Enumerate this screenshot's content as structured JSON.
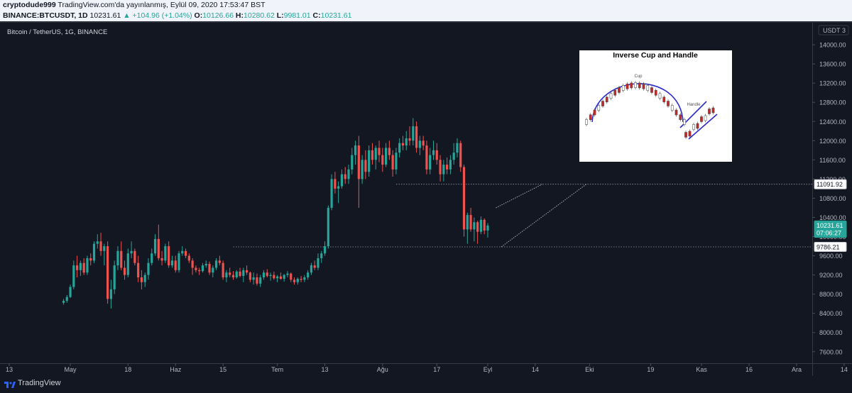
{
  "header": {
    "publisher": "cryptodude999",
    "published_text": " TradingView.com'da yayınlanmış, Eylül 09, 2020 17:53:47 BST",
    "symbol": "BINANCE:BTCUSDT, 1D",
    "last_price": "10231.61",
    "change": "▲ +104.96 (+1.04%)",
    "open_label": "O:",
    "open": "10126.66",
    "high_label": "H:",
    "high": "10280.62",
    "low_label": "L:",
    "low": "9981.01",
    "close_label": "C:",
    "close": "10231.61"
  },
  "chart_title": "Bitcoin / TetherUS, 1G, BINANCE",
  "footer": {
    "brand": "TradingView"
  },
  "colors": {
    "up": "#26a69a",
    "down": "#ef5350",
    "background": "#131722",
    "axis_text": "#b2b5be"
  },
  "chart_data": {
    "type": "candlestick",
    "currency_label": "USDT",
    "currency_marker": "3",
    "y_ticks": [
      7600,
      8000,
      8400,
      8800,
      9200,
      9600,
      10000,
      10400,
      10800,
      11200,
      11600,
      12000,
      12400,
      12800,
      13200,
      13600,
      14000
    ],
    "y_tick_labels": [
      "7600.00",
      "8000.00",
      "8400.00",
      "8800.00",
      "9200.00",
      "9600.00",
      "10000.00",
      "10400.00",
      "10800.00",
      "11200.00",
      "11600.00",
      "12000.00",
      "12400.00",
      "12800.00",
      "13200.00",
      "13600.00",
      "14000.00"
    ],
    "ylim": [
      7360,
      14460
    ],
    "x_labels": [
      {
        "day": 0,
        "label": "13"
      },
      {
        "day": 18,
        "label": "May"
      },
      {
        "day": 35,
        "label": "18"
      },
      {
        "day": 49,
        "label": "Haz"
      },
      {
        "day": 63,
        "label": "15"
      },
      {
        "day": 79,
        "label": "Tem"
      },
      {
        "day": 93,
        "label": "13"
      },
      {
        "day": 110,
        "label": "Ağu"
      },
      {
        "day": 126,
        "label": "17"
      },
      {
        "day": 141,
        "label": "Eyl"
      },
      {
        "day": 155,
        "label": "14"
      },
      {
        "day": 171,
        "label": "Eki"
      },
      {
        "day": 189,
        "label": "19"
      },
      {
        "day": 204,
        "label": "Kas"
      },
      {
        "day": 218,
        "label": "16"
      },
      {
        "day": 232,
        "label": "Ara"
      },
      {
        "day": 246,
        "label": "14"
      }
    ],
    "price_labels": [
      {
        "value": 11091.92,
        "text": "11091.92",
        "style": "white"
      },
      {
        "value": 10231.61,
        "text": "10231.61",
        "style": "green"
      },
      {
        "value": 10080,
        "text": "07:06:27",
        "style": "green"
      },
      {
        "value": 9786.21,
        "text": "9786.21",
        "style": "white"
      }
    ],
    "levels": [
      {
        "value": 11091.92,
        "from_day": 114
      },
      {
        "value": 9786.21,
        "from_day": 66
      }
    ],
    "trendlines": [
      {
        "x1": 143.4,
        "y1": 10600,
        "x2": 157,
        "y2": 11090
      },
      {
        "x1": 145,
        "y1": 9786,
        "x2": 170,
        "y2": 11090
      }
    ],
    "candles": [
      {
        "o": 8620,
        "h": 8700,
        "l": 8580,
        "c": 8660
      },
      {
        "o": 8660,
        "h": 8780,
        "l": 8620,
        "c": 8740
      },
      {
        "o": 8740,
        "h": 9000,
        "l": 8720,
        "c": 8950
      },
      {
        "o": 8950,
        "h": 9500,
        "l": 8900,
        "c": 9400
      },
      {
        "o": 9400,
        "h": 9600,
        "l": 9150,
        "c": 9300
      },
      {
        "o": 9300,
        "h": 9500,
        "l": 9180,
        "c": 9450
      },
      {
        "o": 9450,
        "h": 9550,
        "l": 9200,
        "c": 9250
      },
      {
        "o": 9250,
        "h": 9600,
        "l": 9200,
        "c": 9550
      },
      {
        "o": 9550,
        "h": 9650,
        "l": 9400,
        "c": 9500
      },
      {
        "o": 9500,
        "h": 9900,
        "l": 9450,
        "c": 9850
      },
      {
        "o": 9850,
        "h": 10050,
        "l": 9750,
        "c": 9900
      },
      {
        "o": 9900,
        "h": 10080,
        "l": 9600,
        "c": 9700
      },
      {
        "o": 9700,
        "h": 9850,
        "l": 9400,
        "c": 9800
      },
      {
        "o": 9800,
        "h": 9900,
        "l": 8600,
        "c": 8700
      },
      {
        "o": 8700,
        "h": 9100,
        "l": 8500,
        "c": 8900
      },
      {
        "o": 8900,
        "h": 9500,
        "l": 8800,
        "c": 9400
      },
      {
        "o": 9400,
        "h": 9800,
        "l": 9300,
        "c": 9700
      },
      {
        "o": 9700,
        "h": 9900,
        "l": 9300,
        "c": 9350
      },
      {
        "o": 9350,
        "h": 9500,
        "l": 9100,
        "c": 9200
      },
      {
        "o": 9200,
        "h": 9750,
        "l": 9150,
        "c": 9650
      },
      {
        "o": 9650,
        "h": 9900,
        "l": 9550,
        "c": 9700
      },
      {
        "o": 9700,
        "h": 9750,
        "l": 9400,
        "c": 9450
      },
      {
        "o": 9450,
        "h": 9600,
        "l": 9050,
        "c": 9150
      },
      {
        "o": 9150,
        "h": 9300,
        "l": 8900,
        "c": 9050
      },
      {
        "o": 9050,
        "h": 9250,
        "l": 8950,
        "c": 9200
      },
      {
        "o": 9200,
        "h": 9550,
        "l": 9100,
        "c": 9450
      },
      {
        "o": 9450,
        "h": 9750,
        "l": 9400,
        "c": 9650
      },
      {
        "o": 9650,
        "h": 10050,
        "l": 9600,
        "c": 9950
      },
      {
        "o": 9950,
        "h": 10250,
        "l": 9500,
        "c": 9550
      },
      {
        "o": 9550,
        "h": 9700,
        "l": 9400,
        "c": 9500
      },
      {
        "o": 9500,
        "h": 9850,
        "l": 9450,
        "c": 9800
      },
      {
        "o": 9800,
        "h": 9900,
        "l": 9350,
        "c": 9400
      },
      {
        "o": 9400,
        "h": 9600,
        "l": 9350,
        "c": 9500
      },
      {
        "o": 9500,
        "h": 9600,
        "l": 9250,
        "c": 9300
      },
      {
        "o": 9300,
        "h": 9700,
        "l": 9250,
        "c": 9650
      },
      {
        "o": 9650,
        "h": 9800,
        "l": 9600,
        "c": 9700
      },
      {
        "o": 9700,
        "h": 9750,
        "l": 9550,
        "c": 9600
      },
      {
        "o": 9600,
        "h": 9650,
        "l": 9450,
        "c": 9500
      },
      {
        "o": 9500,
        "h": 9550,
        "l": 9200,
        "c": 9350
      },
      {
        "o": 9350,
        "h": 9400,
        "l": 9250,
        "c": 9300
      },
      {
        "o": 9300,
        "h": 9350,
        "l": 9200,
        "c": 9280
      },
      {
        "o": 9280,
        "h": 9450,
        "l": 9250,
        "c": 9400
      },
      {
        "o": 9400,
        "h": 9500,
        "l": 9350,
        "c": 9430
      },
      {
        "o": 9430,
        "h": 9480,
        "l": 9200,
        "c": 9250
      },
      {
        "o": 9250,
        "h": 9400,
        "l": 9150,
        "c": 9350
      },
      {
        "o": 9350,
        "h": 9550,
        "l": 9300,
        "c": 9500
      },
      {
        "o": 9500,
        "h": 9600,
        "l": 9400,
        "c": 9450
      },
      {
        "o": 9450,
        "h": 9500,
        "l": 9100,
        "c": 9150
      },
      {
        "o": 9150,
        "h": 9300,
        "l": 9050,
        "c": 9250
      },
      {
        "o": 9250,
        "h": 9350,
        "l": 9150,
        "c": 9200
      },
      {
        "o": 9200,
        "h": 9280,
        "l": 9100,
        "c": 9150
      },
      {
        "o": 9150,
        "h": 9300,
        "l": 9120,
        "c": 9270
      },
      {
        "o": 9270,
        "h": 9350,
        "l": 9150,
        "c": 9180
      },
      {
        "o": 9180,
        "h": 9350,
        "l": 9050,
        "c": 9300
      },
      {
        "o": 9300,
        "h": 9400,
        "l": 9200,
        "c": 9250
      },
      {
        "o": 9250,
        "h": 9270,
        "l": 9050,
        "c": 9100
      },
      {
        "o": 9100,
        "h": 9250,
        "l": 9000,
        "c": 9150
      },
      {
        "o": 9150,
        "h": 9230,
        "l": 8980,
        "c": 9020
      },
      {
        "o": 9020,
        "h": 9200,
        "l": 8950,
        "c": 9150
      },
      {
        "o": 9150,
        "h": 9300,
        "l": 9100,
        "c": 9250
      },
      {
        "o": 9250,
        "h": 9320,
        "l": 9150,
        "c": 9180
      },
      {
        "o": 9180,
        "h": 9250,
        "l": 9080,
        "c": 9200
      },
      {
        "o": 9200,
        "h": 9270,
        "l": 9100,
        "c": 9130
      },
      {
        "o": 9130,
        "h": 9200,
        "l": 9050,
        "c": 9170
      },
      {
        "o": 9170,
        "h": 9250,
        "l": 9100,
        "c": 9120
      },
      {
        "o": 9120,
        "h": 9220,
        "l": 9060,
        "c": 9200
      },
      {
        "o": 9200,
        "h": 9280,
        "l": 9150,
        "c": 9230
      },
      {
        "o": 9230,
        "h": 9250,
        "l": 9050,
        "c": 9100
      },
      {
        "o": 9100,
        "h": 9150,
        "l": 9000,
        "c": 9050
      },
      {
        "o": 9050,
        "h": 9150,
        "l": 9000,
        "c": 9120
      },
      {
        "o": 9120,
        "h": 9180,
        "l": 9050,
        "c": 9100
      },
      {
        "o": 9100,
        "h": 9200,
        "l": 9050,
        "c": 9150
      },
      {
        "o": 9150,
        "h": 9300,
        "l": 9100,
        "c": 9250
      },
      {
        "o": 9250,
        "h": 9450,
        "l": 9200,
        "c": 9400
      },
      {
        "o": 9400,
        "h": 9500,
        "l": 9300,
        "c": 9350
      },
      {
        "o": 9350,
        "h": 9650,
        "l": 9300,
        "c": 9550
      },
      {
        "o": 9550,
        "h": 9700,
        "l": 9450,
        "c": 9650
      },
      {
        "o": 9650,
        "h": 9900,
        "l": 9600,
        "c": 9800
      },
      {
        "o": 9800,
        "h": 10650,
        "l": 9750,
        "c": 10600
      },
      {
        "o": 10600,
        "h": 11300,
        "l": 10550,
        "c": 11200
      },
      {
        "o": 11200,
        "h": 11350,
        "l": 10900,
        "c": 11000
      },
      {
        "o": 11000,
        "h": 11150,
        "l": 10700,
        "c": 11050
      },
      {
        "o": 11050,
        "h": 11400,
        "l": 11000,
        "c": 11300
      },
      {
        "o": 11300,
        "h": 11450,
        "l": 11100,
        "c": 11200
      },
      {
        "o": 11200,
        "h": 11500,
        "l": 11100,
        "c": 11400
      },
      {
        "o": 11400,
        "h": 11850,
        "l": 11300,
        "c": 11700
      },
      {
        "o": 11700,
        "h": 12000,
        "l": 11500,
        "c": 11900
      },
      {
        "o": 11900,
        "h": 12100,
        "l": 10600,
        "c": 11200
      },
      {
        "o": 11200,
        "h": 11700,
        "l": 11100,
        "c": 11600
      },
      {
        "o": 11600,
        "h": 11800,
        "l": 11200,
        "c": 11350
      },
      {
        "o": 11350,
        "h": 11900,
        "l": 11250,
        "c": 11800
      },
      {
        "o": 11800,
        "h": 11950,
        "l": 11500,
        "c": 11600
      },
      {
        "o": 11600,
        "h": 11900,
        "l": 11400,
        "c": 11850
      },
      {
        "o": 11850,
        "h": 12000,
        "l": 11550,
        "c": 11700
      },
      {
        "o": 11700,
        "h": 11850,
        "l": 11350,
        "c": 11500
      },
      {
        "o": 11500,
        "h": 11950,
        "l": 11450,
        "c": 11850
      },
      {
        "o": 11850,
        "h": 12000,
        "l": 11600,
        "c": 11700
      },
      {
        "o": 11700,
        "h": 11800,
        "l": 11250,
        "c": 11400
      },
      {
        "o": 11400,
        "h": 11850,
        "l": 11300,
        "c": 11750
      },
      {
        "o": 11750,
        "h": 12050,
        "l": 11650,
        "c": 11950
      },
      {
        "o": 11950,
        "h": 12100,
        "l": 11800,
        "c": 11900
      },
      {
        "o": 11900,
        "h": 12200,
        "l": 11800,
        "c": 12050
      },
      {
        "o": 12050,
        "h": 12300,
        "l": 11900,
        "c": 12000
      },
      {
        "o": 12000,
        "h": 12470,
        "l": 11900,
        "c": 12300
      },
      {
        "o": 12300,
        "h": 12400,
        "l": 11750,
        "c": 11850
      },
      {
        "o": 11850,
        "h": 12100,
        "l": 11700,
        "c": 12000
      },
      {
        "o": 12000,
        "h": 12100,
        "l": 11800,
        "c": 11900
      },
      {
        "o": 11900,
        "h": 12000,
        "l": 11300,
        "c": 11400
      },
      {
        "o": 11400,
        "h": 11850,
        "l": 11300,
        "c": 11700
      },
      {
        "o": 11700,
        "h": 12000,
        "l": 11600,
        "c": 11800
      },
      {
        "o": 11800,
        "h": 11950,
        "l": 11500,
        "c": 11600
      },
      {
        "o": 11600,
        "h": 11700,
        "l": 11150,
        "c": 11300
      },
      {
        "o": 11300,
        "h": 11600,
        "l": 11150,
        "c": 11500
      },
      {
        "o": 11500,
        "h": 11650,
        "l": 11300,
        "c": 11400
      },
      {
        "o": 11400,
        "h": 11700,
        "l": 11300,
        "c": 11600
      },
      {
        "o": 11600,
        "h": 11950,
        "l": 11500,
        "c": 11750
      },
      {
        "o": 11750,
        "h": 12050,
        "l": 11650,
        "c": 11950
      },
      {
        "o": 11950,
        "h": 12000,
        "l": 11350,
        "c": 11450
      },
      {
        "o": 11450,
        "h": 11500,
        "l": 10000,
        "c": 10150
      },
      {
        "o": 10150,
        "h": 10500,
        "l": 9850,
        "c": 10450
      },
      {
        "o": 10450,
        "h": 10600,
        "l": 10100,
        "c": 10150
      },
      {
        "o": 10150,
        "h": 10400,
        "l": 9900,
        "c": 10300
      },
      {
        "o": 10300,
        "h": 10330,
        "l": 9850,
        "c": 10100
      },
      {
        "o": 10100,
        "h": 10420,
        "l": 10050,
        "c": 10350
      },
      {
        "o": 10350,
        "h": 10380,
        "l": 10050,
        "c": 10126
      },
      {
        "o": 10126.66,
        "h": 10280.62,
        "l": 9981.01,
        "c": 10231.61
      }
    ]
  },
  "inset": {
    "title": "Inverse Cup and Handle",
    "cup_label": "Cup",
    "handle_label": "Handle"
  }
}
